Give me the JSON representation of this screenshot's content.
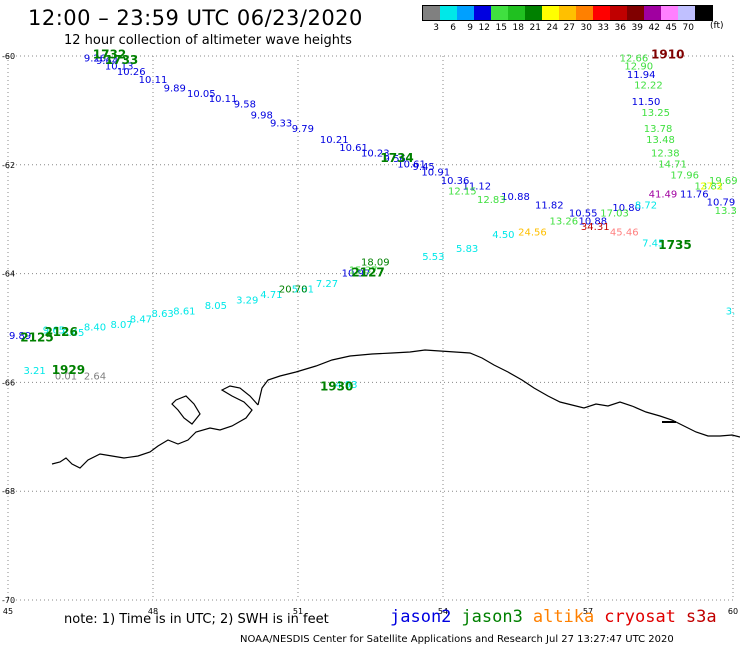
{
  "header": {
    "title": "12:00 – 23:59 UTC 06/23/2020",
    "subtitle": "12 hour collection of altimeter wave heights"
  },
  "legend": {
    "colors": [
      "#808080",
      "#00e8e8",
      "#00a0ff",
      "#0000e0",
      "#40e040",
      "#20c020",
      "#008000",
      "#ffff00",
      "#ffc000",
      "#ff8000",
      "#ff0000",
      "#c00000",
      "#800000",
      "#a000a0",
      "#ff80ff",
      "#c0c0ff",
      "#000000"
    ],
    "labels": [
      "3",
      "6",
      "9",
      "12",
      "15",
      "18",
      "21",
      "24",
      "27",
      "30",
      "33",
      "36",
      "39",
      "42",
      "45",
      "70"
    ],
    "unit": "(ft)"
  },
  "axes": {
    "lon_labels": [
      "45",
      "48",
      "51",
      "54",
      "57",
      "60"
    ],
    "lat_labels": [
      "-60",
      "-62",
      "-64",
      "-66",
      "-68",
      "-70"
    ],
    "lon_range": [
      45,
      60
    ],
    "lat_range": [
      -70,
      -60
    ]
  },
  "tracks": [
    {
      "color": "#0000e0",
      "points": [
        {
          "lon": 46.8,
          "lat": -60.1,
          "v": "9.26"
        },
        {
          "lon": 47.05,
          "lat": -60.15,
          "v": "9.64"
        },
        {
          "lon": 47.3,
          "lat": -60.25,
          "v": "10.13"
        },
        {
          "lon": 47.55,
          "lat": -60.35,
          "v": "10.26"
        },
        {
          "lon": 48.0,
          "lat": -60.5,
          "v": "10.11"
        },
        {
          "lon": 48.45,
          "lat": -60.65,
          "v": "9.89"
        },
        {
          "lon": 49.0,
          "lat": -60.75,
          "v": "10.05"
        },
        {
          "lon": 49.45,
          "lat": -60.85,
          "v": "10.11"
        },
        {
          "lon": 49.9,
          "lat": -60.95,
          "v": "9.58"
        },
        {
          "lon": 50.25,
          "lat": -61.15,
          "v": "9.98"
        },
        {
          "lon": 50.65,
          "lat": -61.3,
          "v": "9.33"
        },
        {
          "lon": 51.1,
          "lat": -61.4,
          "v": "9.79"
        },
        {
          "lon": 51.75,
          "lat": -61.6,
          "v": "10.21"
        },
        {
          "lon": 52.15,
          "lat": -61.75,
          "v": "10.61"
        },
        {
          "lon": 52.6,
          "lat": -61.85,
          "v": "10.23"
        },
        {
          "lon": 53.0,
          "lat": -61.95,
          "v": "9.56"
        },
        {
          "lon": 53.35,
          "lat": -62.05,
          "v": "10.61"
        },
        {
          "lon": 53.6,
          "lat": -62.1,
          "v": "9.45"
        },
        {
          "lon": 53.85,
          "lat": -62.2,
          "v": "10.91"
        },
        {
          "lon": 54.25,
          "lat": -62.35,
          "v": "10.36"
        },
        {
          "lon": 54.7,
          "lat": -62.45,
          "v": "11.12"
        },
        {
          "lon": 55.5,
          "lat": -62.65,
          "v": "10.88"
        },
        {
          "lon": 56.2,
          "lat": -62.8,
          "v": "11.82"
        },
        {
          "lon": 56.9,
          "lat": -62.95,
          "v": "10.55"
        },
        {
          "lon": 57.1,
          "lat": -63.1,
          "v": "10.88"
        },
        {
          "lon": 57.8,
          "lat": -62.85,
          "v": "10.80"
        },
        {
          "lon": 59.2,
          "lat": -62.6,
          "v": "11.76"
        },
        {
          "lon": 59.75,
          "lat": -62.75,
          "v": "10.79"
        },
        {
          "lon": 58.1,
          "lat": -60.4,
          "v": "11.94"
        },
        {
          "lon": 58.2,
          "lat": -60.9,
          "v": "11.50"
        },
        {
          "lon": 52.2,
          "lat": -64.05,
          "v": "10.97"
        },
        {
          "lon": 45.25,
          "lat": -65.2,
          "v": "9.89"
        }
      ]
    },
    {
      "color": "#40e040",
      "points": [
        {
          "lon": 57.95,
          "lat": -60.1,
          "v": "12.66"
        },
        {
          "lon": 58.05,
          "lat": -60.25,
          "v": "12.90"
        },
        {
          "lon": 58.25,
          "lat": -60.6,
          "v": "12.22"
        },
        {
          "lon": 58.4,
          "lat": -61.1,
          "v": "13.25"
        },
        {
          "lon": 58.45,
          "lat": -61.4,
          "v": "13.78"
        },
        {
          "lon": 58.5,
          "lat": -61.6,
          "v": "13.48"
        },
        {
          "lon": 58.6,
          "lat": -61.85,
          "v": "12.38"
        },
        {
          "lon": 58.75,
          "lat": -62.05,
          "v": "14.71"
        },
        {
          "lon": 59.0,
          "lat": -62.25,
          "v": "17.96"
        },
        {
          "lon": 59.5,
          "lat": -62.45,
          "v": "13.82"
        },
        {
          "lon": 59.8,
          "lat": -62.35,
          "v": "19.69"
        },
        {
          "lon": 59.85,
          "lat": -62.9,
          "v": "13.3"
        },
        {
          "lon": 54.4,
          "lat": -62.55,
          "v": "12.15"
        },
        {
          "lon": 55.0,
          "lat": -62.7,
          "v": "12.83"
        },
        {
          "lon": 56.5,
          "lat": -63.1,
          "v": "13.26"
        },
        {
          "lon": 57.55,
          "lat": -62.95,
          "v": "17.03"
        },
        {
          "lon": 52.35,
          "lat": -64.0,
          "v": "15.37"
        }
      ]
    },
    {
      "color": "#00e8e8",
      "points": [
        {
          "lon": 58.2,
          "lat": -62.8,
          "v": "8.72"
        },
        {
          "lon": 53.8,
          "lat": -63.75,
          "v": "5.53"
        },
        {
          "lon": 54.5,
          "lat": -63.6,
          "v": "5.83"
        },
        {
          "lon": 55.25,
          "lat": -63.35,
          "v": "4.50"
        },
        {
          "lon": 51.6,
          "lat": -64.25,
          "v": "7.27"
        },
        {
          "lon": 50.45,
          "lat": -64.45,
          "v": "4.71"
        },
        {
          "lon": 49.95,
          "lat": -64.55,
          "v": "3.29"
        },
        {
          "lon": 49.3,
          "lat": -64.65,
          "v": "8.05"
        },
        {
          "lon": 48.65,
          "lat": -64.75,
          "v": "8.61"
        },
        {
          "lon": 48.2,
          "lat": -64.8,
          "v": "8.63"
        },
        {
          "lon": 47.75,
          "lat": -64.9,
          "v": "8.47"
        },
        {
          "lon": 47.35,
          "lat": -65.0,
          "v": "8.07"
        },
        {
          "lon": 46.8,
          "lat": -65.05,
          "v": "8.40"
        },
        {
          "lon": 46.35,
          "lat": -65.15,
          "v": "8.45"
        },
        {
          "lon": 45.95,
          "lat": -65.1,
          "v": "9.65"
        },
        {
          "lon": 45.55,
          "lat": -65.85,
          "v": "3.21"
        },
        {
          "lon": 51.1,
          "lat": -64.35,
          "v": "5.81"
        },
        {
          "lon": 58.35,
          "lat": -63.5,
          "v": "7.45"
        },
        {
          "lon": 52.0,
          "lat": -66.1,
          "v": "4.93"
        },
        {
          "lon": 59.95,
          "lat": -64.75,
          "v": "3."
        }
      ]
    },
    {
      "color": "#008000",
      "points": [
        {
          "lon": 50.9,
          "lat": -64.35,
          "v": "20.70"
        },
        {
          "lon": 52.6,
          "lat": -63.85,
          "v": "18.09"
        }
      ]
    },
    {
      "color": "#ffc000",
      "points": [
        {
          "lon": 55.85,
          "lat": -63.3,
          "v": "24.56"
        }
      ]
    },
    {
      "color": "#ff8080",
      "points": [
        {
          "lon": 57.75,
          "lat": -63.3,
          "v": "45.46"
        }
      ]
    },
    {
      "color": "#c00000",
      "points": [
        {
          "lon": 57.15,
          "lat": -63.2,
          "v": "34.31"
        }
      ]
    },
    {
      "color": "#a000a0",
      "points": [
        {
          "lon": 58.55,
          "lat": -62.6,
          "v": "41.49"
        }
      ]
    },
    {
      "color": "#ffff00",
      "points": [
        {
          "lon": 59.55,
          "lat": -62.45,
          "v": "27.3"
        }
      ]
    },
    {
      "color": "#808080",
      "points": [
        {
          "lon": 46.2,
          "lat": -65.95,
          "v": "0.01"
        },
        {
          "lon": 46.8,
          "lat": -65.95,
          "v": "2.64"
        }
      ]
    }
  ],
  "times": [
    {
      "lon": 47.1,
      "lat": -60.05,
      "t": "1732",
      "color": "#008000"
    },
    {
      "lon": 47.35,
      "lat": -60.15,
      "t": "1733",
      "color": "#008000"
    },
    {
      "lon": 53.05,
      "lat": -61.95,
      "t": "1734",
      "color": "#008000"
    },
    {
      "lon": 58.8,
      "lat": -63.55,
      "t": "1735",
      "color": "#008000"
    },
    {
      "lon": 58.65,
      "lat": -60.05,
      "t": "1910",
      "color": "#800000"
    },
    {
      "lon": 52.45,
      "lat": -64.05,
      "t": "2127",
      "color": "#008000"
    },
    {
      "lon": 46.1,
      "lat": -65.15,
      "t": "2126",
      "color": "#008000"
    },
    {
      "lon": 45.6,
      "lat": -65.25,
      "t": "2125",
      "color": "#008000"
    },
    {
      "lon": 46.25,
      "lat": -65.85,
      "t": "1929",
      "color": "#008000"
    },
    {
      "lon": 51.8,
      "lat": -66.15,
      "t": "1930",
      "color": "#008000"
    }
  ],
  "footer": {
    "note": "note:  1) Time is in UTC;  2) SWH is in feet",
    "satellites": [
      {
        "name": "jason2",
        "color": "#0000e0"
      },
      {
        "name": "jason3",
        "color": "#008000"
      },
      {
        "name": "altika",
        "color": "#ff8000"
      },
      {
        "name": "cryosat",
        "color": "#e00000"
      },
      {
        "name": "s3a",
        "color": "#c00000"
      }
    ],
    "credit": "NOAA/NESDIS Center for Satellite Applications and Research    Jul 27 13:27:47 UTC 2020"
  }
}
